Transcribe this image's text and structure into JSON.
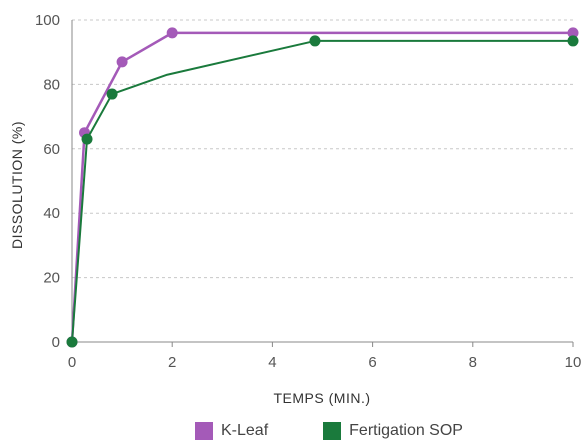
{
  "chart_data": {
    "type": "line",
    "xlabel": "TEMPS (MIN.)",
    "ylabel": "DISSOLUTION (%)",
    "xlim": [
      0,
      10
    ],
    "ylim": [
      0,
      100
    ],
    "xticks": [
      0,
      2,
      4,
      6,
      8,
      10
    ],
    "yticks": [
      0,
      20,
      40,
      60,
      80,
      100
    ],
    "grid": "horizontal dashed",
    "legend_position": "bottom",
    "series": [
      {
        "name": "K-Leaf",
        "color": "#a45ab8",
        "x": [
          0,
          0.25,
          1,
          2,
          10
        ],
        "y": [
          0,
          65,
          87,
          96,
          96
        ],
        "markers": [
          true,
          true,
          true,
          true,
          true
        ]
      },
      {
        "name": "Fertigation SOP",
        "color": "#1a7a3c",
        "x": [
          0,
          0.3,
          0.8,
          1.9,
          4.85,
          10
        ],
        "y": [
          0,
          63,
          77,
          83,
          93.5,
          93.5
        ],
        "markers": [
          true,
          true,
          true,
          false,
          true,
          true
        ]
      }
    ]
  }
}
